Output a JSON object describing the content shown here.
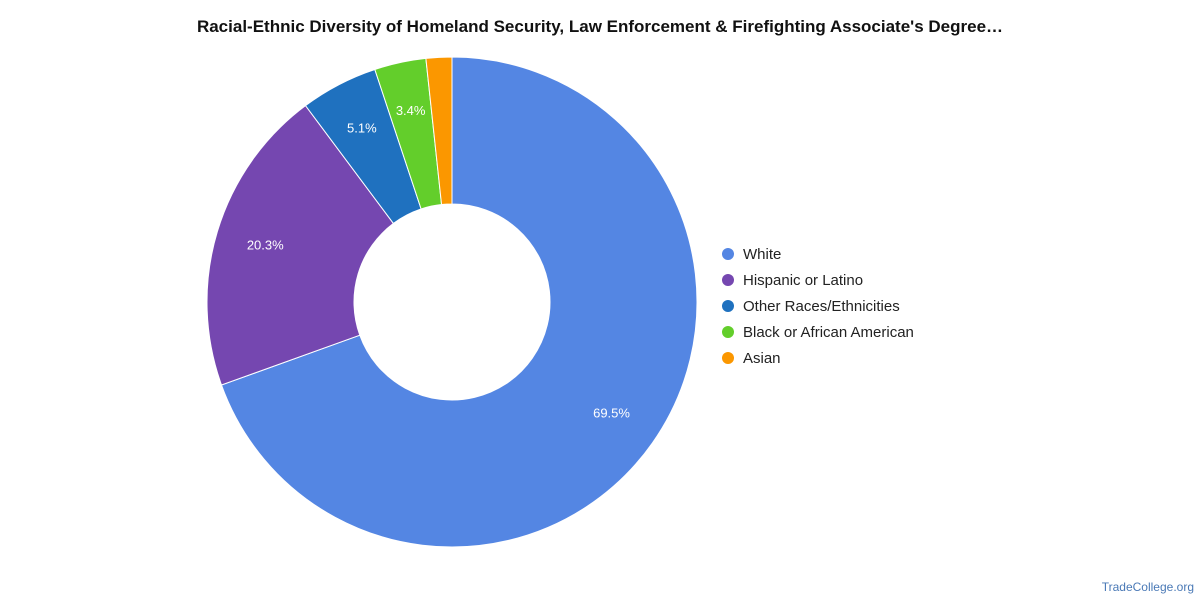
{
  "chart_data": {
    "type": "pie",
    "title": "Racial-Ethnic Diversity of Homeland Security, Law Enforcement & Firefighting Associate's Degree…",
    "donut": true,
    "legend_position": "right",
    "slices": [
      {
        "name": "White",
        "value": 69.5,
        "label": "69.5%",
        "color": "#5486e3"
      },
      {
        "name": "Hispanic or Latino",
        "value": 20.3,
        "label": "20.3%",
        "color": "#7547b0"
      },
      {
        "name": "Other Races/Ethnicities",
        "value": 5.1,
        "label": "5.1%",
        "color": "#1f71bf"
      },
      {
        "name": "Black or African American",
        "value": 3.4,
        "label": "3.4%",
        "color": "#63ce2b"
      },
      {
        "name": "Asian",
        "value": 1.7,
        "label": "",
        "color": "#fb9700"
      }
    ]
  },
  "watermark": "TradeCollege.org"
}
